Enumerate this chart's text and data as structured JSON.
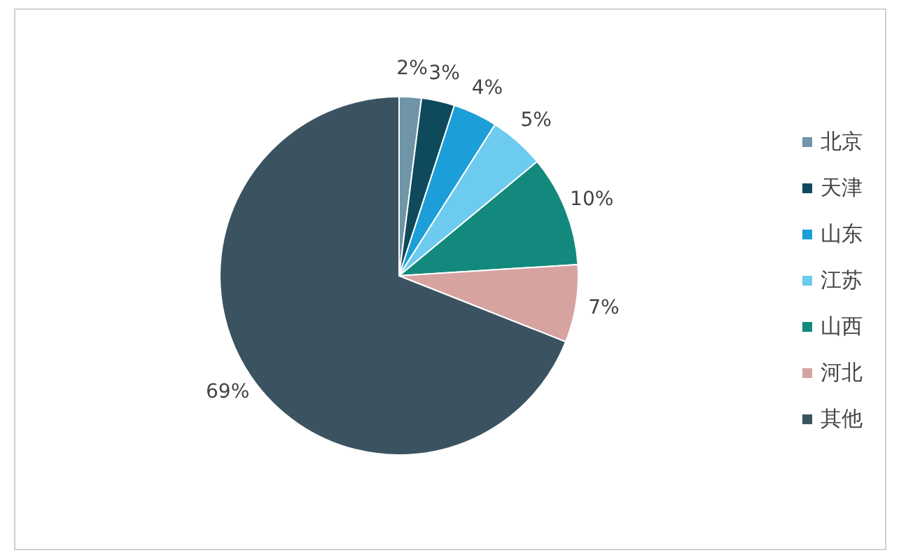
{
  "chart_data": {
    "type": "pie",
    "categories": [
      "北京",
      "天津",
      "山东",
      "江苏",
      "山西",
      "河北",
      "其他"
    ],
    "values": [
      2,
      3,
      4,
      5,
      10,
      7,
      69
    ],
    "colors": [
      "#6f95a6",
      "#0e4a5c",
      "#1c9ed8",
      "#6ccbee",
      "#13897e",
      "#d6a3a0",
      "#3b5361"
    ],
    "value_labels": [
      "2%",
      "3%",
      "4%",
      "5%",
      "10%",
      "7%",
      "69%"
    ],
    "legend": "right"
  }
}
